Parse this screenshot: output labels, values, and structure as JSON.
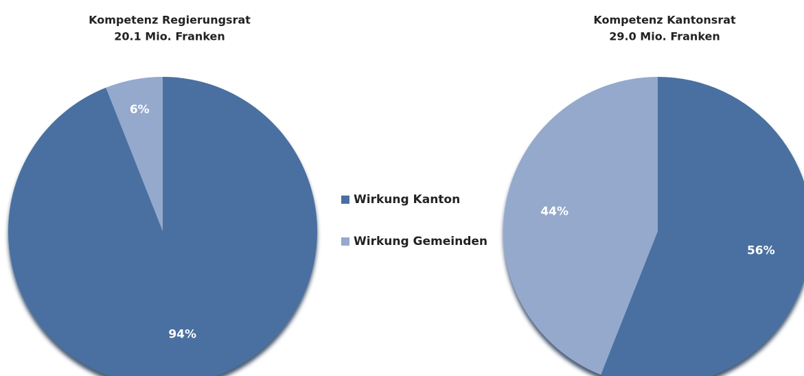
{
  "chart_data": [
    {
      "type": "pie",
      "title": "Kompetenz Regierungsrat",
      "subtitle": "20.1 Mio. Franken",
      "categories": [
        "Wirkung Kanton",
        "Wirkung Gemeinden"
      ],
      "values": [
        94,
        6
      ],
      "value_labels": [
        "94%",
        "6%"
      ],
      "colors": [
        "#4a6fa0",
        "#94a9cc"
      ],
      "legend": "center"
    },
    {
      "type": "pie",
      "title": "Kompetenz Kantonsrat",
      "subtitle": "29.0 Mio. Franken",
      "categories": [
        "Wirkung Kanton",
        "Wirkung Gemeinden"
      ],
      "values": [
        56,
        44
      ],
      "value_labels": [
        "56%",
        "44%"
      ],
      "colors": [
        "#4a6fa0",
        "#94a9cc"
      ],
      "legend": "center"
    }
  ]
}
